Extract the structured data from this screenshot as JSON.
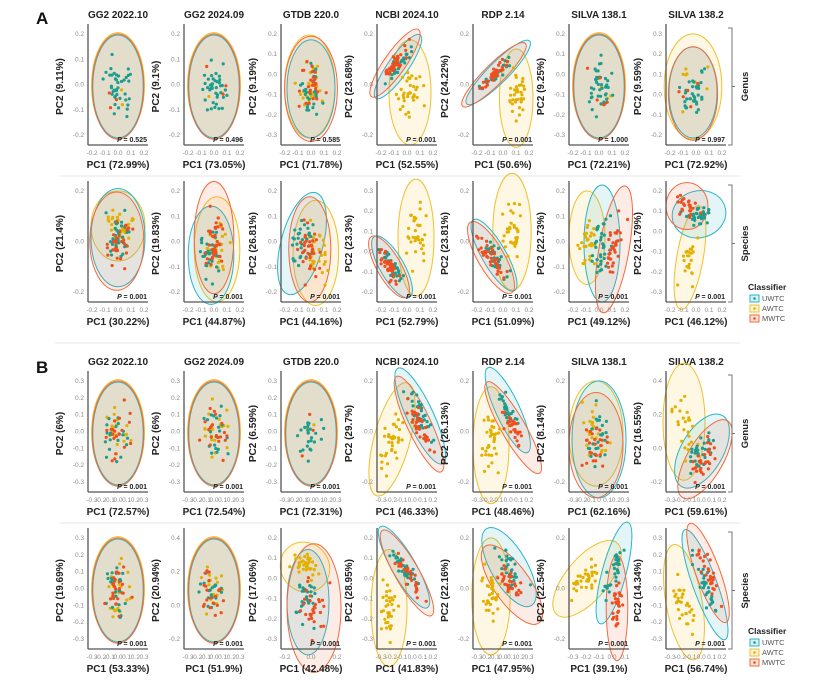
{
  "figure": {
    "panel_labels": [
      "A",
      "B"
    ],
    "column_titles": [
      "GG2 2022.10",
      "GG2 2024.09",
      "GTDB 220.0",
      "NCBI 2024.10",
      "RDP 2.14",
      "SILVA 138.1",
      "SILVA 138.2"
    ],
    "row_labels": [
      "Genus",
      "Species",
      "Genus",
      "Species"
    ],
    "legend": {
      "title": "Classifier",
      "items": [
        {
          "label": "UWTC",
          "color": "#2bb5c8",
          "point": "#1b9e8f"
        },
        {
          "label": "AWTC",
          "color": "#f0c02c",
          "point": "#e3b000"
        },
        {
          "label": "MWTC",
          "color": "#f26a3d",
          "point": "#f04e1e"
        }
      ]
    }
  },
  "chart_data": [
    {
      "type": "scatter",
      "section": "A",
      "level": "Genus",
      "title": "GG2 2022.10",
      "xlabel": "PC1 (72.99%)",
      "ylabel": "PC2 (9.11%)",
      "p": "= 0.525",
      "yticks": [
        "0.2",
        "0.1",
        "0.0",
        "-0.1",
        "-0.2"
      ],
      "xticks": [
        "-0.2",
        "-0.1",
        "0.0",
        "0.1",
        "0.2"
      ]
    },
    {
      "type": "scatter",
      "section": "A",
      "level": "Genus",
      "title": "GG2 2024.09",
      "xlabel": "PC1 (73.05%)",
      "ylabel": "PC2 (9.1%)",
      "p": "= 0.496",
      "yticks": [
        "0.2",
        "0.1",
        "0.0",
        "-0.1",
        "-0.2"
      ],
      "xticks": [
        "-0.2",
        "-0.1",
        "0.0",
        "0.1",
        "0.2"
      ]
    },
    {
      "type": "scatter",
      "section": "A",
      "level": "Genus",
      "title": "GTDB 220.0",
      "xlabel": "PC1 (71.78%)",
      "ylabel": "PC2 (9.19%)",
      "p": "= 0.585",
      "yticks": [
        "0.2",
        "0.1",
        "0.0",
        "-0.1",
        "-0.2",
        "-0.3"
      ],
      "xticks": [
        "-0.2",
        "-0.1",
        "0.0",
        "0.1",
        "0.2"
      ]
    },
    {
      "type": "scatter",
      "section": "A",
      "level": "Genus",
      "title": "NCBI 2024.10",
      "xlabel": "PC1 (52.55%)",
      "ylabel": "PC2 (23.68%)",
      "p": "= 0.001",
      "yticks": [
        "0.2",
        "0.0",
        "-0.2"
      ],
      "xticks": [
        "-0.2",
        "-0.1",
        "0.0",
        "0.1",
        "0.2"
      ]
    },
    {
      "type": "scatter",
      "section": "A",
      "level": "Genus",
      "title": "RDP 2.14",
      "xlabel": "PC1 (50.6%)",
      "ylabel": "PC2 (24.22%)",
      "p": "= 0.001",
      "yticks": [
        "0.2",
        "0.0",
        "-0.2"
      ],
      "xticks": [
        "-0.2",
        "-0.1",
        "0.0",
        "0.1",
        "0.2"
      ]
    },
    {
      "type": "scatter",
      "section": "A",
      "level": "Genus",
      "title": "SILVA 138.1",
      "xlabel": "PC1 (72.21%)",
      "ylabel": "PC2 (9.25%)",
      "p": "= 1.000",
      "yticks": [
        "0.2",
        "0.1",
        "0.0",
        "-0.1",
        "-0.2",
        "-0.3"
      ],
      "xticks": [
        "-0.2",
        "-0.1",
        "0.0",
        "0.1",
        "0.2"
      ]
    },
    {
      "type": "scatter",
      "section": "A",
      "level": "Genus",
      "title": "SILVA 138.2",
      "xlabel": "PC1 (72.92%)",
      "ylabel": "PC2 (9.59%)",
      "p": "= 0.997",
      "yticks": [
        "0.3",
        "0.2",
        "0.1",
        "0.0",
        "-0.1",
        "-0.2"
      ],
      "xticks": [
        "-0.2",
        "-0.1",
        "0.0",
        "0.1",
        "0.2"
      ]
    },
    {
      "type": "scatter",
      "section": "A",
      "level": "Species",
      "title": "",
      "xlabel": "PC1 (30.22%)",
      "ylabel": "PC2 (21.4%)",
      "p": "= 0.001",
      "yticks": [
        "0.2",
        "0.0",
        "-0.2"
      ],
      "xticks": [
        "-0.2",
        "-0.1",
        "0.0",
        "0.1",
        "0.2"
      ]
    },
    {
      "type": "scatter",
      "section": "A",
      "level": "Species",
      "title": "",
      "xlabel": "PC1 (44.87%)",
      "ylabel": "PC2 (19.83%)",
      "p": "= 0.001",
      "yticks": [
        "0.2",
        "0.1",
        "0.0",
        "-0.1",
        "-0.2"
      ],
      "xticks": [
        "-0.2",
        "-0.1",
        "0.0",
        "0.1",
        "0.2"
      ]
    },
    {
      "type": "scatter",
      "section": "A",
      "level": "Species",
      "title": "",
      "xlabel": "PC1 (44.16%)",
      "ylabel": "PC2 (26.81%)",
      "p": "= 0.001",
      "yticks": [
        "0.2",
        "0.1",
        "0.0",
        "-0.1",
        "-0.2"
      ],
      "xticks": [
        "-0.2",
        "-0.1",
        "0.0",
        "0.1",
        "0.2"
      ]
    },
    {
      "type": "scatter",
      "section": "A",
      "level": "Species",
      "title": "",
      "xlabel": "PC1 (52.79%)",
      "ylabel": "PC2 (23.3%)",
      "p": "= 0.001",
      "yticks": [
        "0.3",
        "0.2",
        "0.1",
        "0.0",
        "-0.1",
        "-0.2"
      ],
      "xticks": [
        "-0.2",
        "-0.1",
        "0.0",
        "0.1",
        "0.2"
      ]
    },
    {
      "type": "scatter",
      "section": "A",
      "level": "Species",
      "title": "",
      "xlabel": "PC1 (51.09%)",
      "ylabel": "PC2 (23.81%)",
      "p": "= 0.001",
      "yticks": [
        "0.2",
        "0.0",
        "-0.2"
      ],
      "xticks": [
        "-0.2",
        "-0.1",
        "0.0",
        "0.1",
        "0.2"
      ]
    },
    {
      "type": "scatter",
      "section": "A",
      "level": "Species",
      "title": "",
      "xlabel": "PC1 (49.12%)",
      "ylabel": "PC2 (22.73%)",
      "p": "= 0.001",
      "yticks": [
        "0.2",
        "0.1",
        "0.0",
        "-0.1",
        "-0.2"
      ],
      "xticks": [
        "-0.2",
        "-0.1",
        "0.0",
        "0.1",
        "0.2"
      ]
    },
    {
      "type": "scatter",
      "section": "A",
      "level": "Species",
      "title": "",
      "xlabel": "PC1 (46.12%)",
      "ylabel": "PC2 (21.79%)",
      "p": "= 0.001",
      "yticks": [
        "0.2",
        "0.1",
        "0.0",
        "-0.1",
        "-0.2",
        "-0.3"
      ],
      "xticks": [
        "-0.2",
        "-0.1",
        "0.0",
        "0.1",
        "0.2"
      ]
    },
    {
      "type": "scatter",
      "section": "B",
      "level": "Genus",
      "title": "GG2 2022.10",
      "xlabel": "PC1 (72.57%)",
      "ylabel": "PC2 (6%)",
      "p": "= 0.001",
      "yticks": [
        "0.3",
        "0.2",
        "0.1",
        "0.0",
        "-0.1",
        "-0.2",
        "-0.3"
      ],
      "xticks": [
        "-0.3",
        "-0.2",
        "-0.1",
        "0.0",
        "0.1",
        "0.2",
        "0.3"
      ]
    },
    {
      "type": "scatter",
      "section": "B",
      "level": "Genus",
      "title": "GG2 2024.09",
      "xlabel": "PC1 (72.54%)",
      "ylabel": "PC2 (6%)",
      "p": "= 0.001",
      "yticks": [
        "0.3",
        "0.2",
        "0.1",
        "0.0",
        "-0.1",
        "-0.2",
        "-0.3"
      ],
      "xticks": [
        "-0.3",
        "-0.2",
        "-0.1",
        "0.0",
        "0.1",
        "0.2",
        "0.3"
      ]
    },
    {
      "type": "scatter",
      "section": "B",
      "level": "Genus",
      "title": "GTDB 220.0",
      "xlabel": "PC1 (72.31%)",
      "ylabel": "PC2 (6.59%)",
      "p": "= 0.001",
      "yticks": [
        "0.3",
        "0.2",
        "0.1",
        "0.0",
        "-0.1",
        "-0.2",
        "-0.3"
      ],
      "xticks": [
        "-0.3",
        "-0.2",
        "-0.1",
        "0.0",
        "0.1",
        "0.2",
        "0.3"
      ]
    },
    {
      "type": "scatter",
      "section": "B",
      "level": "Genus",
      "title": "NCBI 2024.10",
      "xlabel": "PC1 (46.33%)",
      "ylabel": "PC2 (29.7%)",
      "p": "= 0.001",
      "yticks": [
        "0.2",
        "0.0",
        "-0.2"
      ],
      "xticks": [
        "-0.3",
        "-0.2",
        "-0.1",
        "0.0",
        "0.1",
        "0.2"
      ]
    },
    {
      "type": "scatter",
      "section": "B",
      "level": "Genus",
      "title": "RDP 2.14",
      "xlabel": "PC1 (48.46%)",
      "ylabel": "PC2 (26.13%)",
      "p": "= 0.001",
      "yticks": [
        "0.2",
        "0.0",
        "-0.2"
      ],
      "xticks": [
        "-0.3",
        "-0.2",
        "-0.1",
        "0.0",
        "0.1",
        "0.2"
      ]
    },
    {
      "type": "scatter",
      "section": "B",
      "level": "Genus",
      "title": "SILVA 138.1",
      "xlabel": "PC1 (62.16%)",
      "ylabel": "PC2 (8.14%)",
      "p": "= 0.001",
      "yticks": [
        "0.2",
        "0.0",
        "-0.2"
      ],
      "xticks": [
        "-0.3",
        "-0.2",
        "-0.1",
        "0",
        "0.1",
        "0.2",
        "0.3"
      ]
    },
    {
      "type": "scatter",
      "section": "B",
      "level": "Genus",
      "title": "SILVA 138.2",
      "xlabel": "PC1 (59.61%)",
      "ylabel": "PC2 (16.55%)",
      "p": "= 0.001",
      "yticks": [
        "0.4",
        "0.2",
        "0.0",
        "-0.2"
      ],
      "xticks": [
        "-0.3",
        "-0.2",
        "-0.1",
        "0.0",
        "0.1",
        "0.2"
      ]
    },
    {
      "type": "scatter",
      "section": "B",
      "level": "Species",
      "title": "",
      "xlabel": "PC1 (53.33%)",
      "ylabel": "PC2 (19.69%)",
      "p": "= 0.001",
      "yticks": [
        "0.3",
        "0.2",
        "0.1",
        "0.0",
        "-0.1",
        "-0.2",
        "-0.3"
      ],
      "xticks": [
        "-0.3",
        "-0.2",
        "-0.1",
        "0.0",
        "0.1",
        "0.2",
        "0.3"
      ]
    },
    {
      "type": "scatter",
      "section": "B",
      "level": "Species",
      "title": "",
      "xlabel": "PC1 (51.9%)",
      "ylabel": "PC2 (20.94%)",
      "p": "= 0.001",
      "yticks": [
        "0.4",
        "0.2",
        "0.0",
        "-0.2"
      ],
      "xticks": [
        "-0.3",
        "-0.2",
        "-0.1",
        "0.0",
        "0.1",
        "0.2",
        "0.3"
      ]
    },
    {
      "type": "scatter",
      "section": "B",
      "level": "Species",
      "title": "",
      "xlabel": "PC1 (42.48%)",
      "ylabel": "PC2 (17.06%)",
      "p": "= 0.001",
      "yticks": [
        "0.2",
        "0.1",
        "0.0",
        "-0.1",
        "-0.2",
        "-0.3"
      ],
      "xticks": [
        "-0.2",
        "0.0",
        "0.2"
      ]
    },
    {
      "type": "scatter",
      "section": "B",
      "level": "Species",
      "title": "",
      "xlabel": "PC1 (41.83%)",
      "ylabel": "PC2 (28.95%)",
      "p": "= 0.001",
      "yticks": [
        "0.2",
        "0.1",
        "0.0",
        "-0.1",
        "-0.2",
        "-0.3"
      ],
      "xticks": [
        "-0.3",
        "-0.2",
        "-0.1",
        "0.0",
        "0.1",
        "0.2"
      ]
    },
    {
      "type": "scatter",
      "section": "B",
      "level": "Species",
      "title": "",
      "xlabel": "PC1 (47.95%)",
      "ylabel": "PC2 (22.16%)",
      "p": "= 0.001",
      "yticks": [
        "0.2",
        "0.0",
        "-0.2"
      ],
      "xticks": [
        "-0.3",
        "-0.2",
        "-0.1",
        "0.0",
        "0.1",
        "0.2",
        "0.3"
      ]
    },
    {
      "type": "scatter",
      "section": "B",
      "level": "Species",
      "title": "",
      "xlabel": "PC1 (39.1%)",
      "ylabel": "PC2 (22.54%)",
      "p": "= 0.001",
      "yticks": [
        "0.2",
        "0.0",
        "-0.2"
      ],
      "xticks": [
        "-0.3",
        "-0.2",
        "-0.1",
        "0.0",
        "0.1"
      ]
    },
    {
      "type": "scatter",
      "section": "B",
      "level": "Species",
      "title": "",
      "xlabel": "PC1 (56.74%)",
      "ylabel": "PC2 (14.34%)",
      "p": "= 0.001",
      "yticks": [
        "0.3",
        "0.2",
        "0.1",
        "0.0",
        "-0.1",
        "-0.2",
        "-0.3"
      ],
      "xticks": [
        "-0.3",
        "-0.2",
        "-0.1",
        "0.0",
        "0.1",
        "0.2"
      ]
    }
  ]
}
